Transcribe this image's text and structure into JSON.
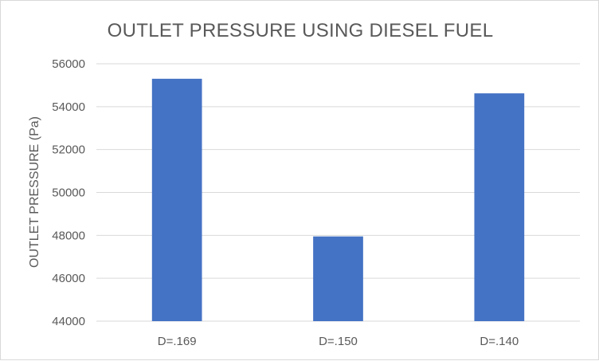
{
  "chart_data": {
    "type": "bar",
    "title": "OUTLET  PRESSURE USING DIESEL FUEL",
    "xlabel": "",
    "ylabel": "OUTLET PRESSURE (Pa)",
    "categories": [
      "D=.169",
      "D=.150",
      "D=.140"
    ],
    "series": [
      {
        "values": [
          55300,
          47950,
          54620
        ]
      }
    ],
    "ylim": [
      44000,
      56000
    ],
    "yticks": [
      44000,
      46000,
      48000,
      50000,
      52000,
      54000,
      56000
    ],
    "grid": true,
    "legend": "none",
    "bar_color": "#4472C4",
    "grid_color": "#d9d9d9"
  }
}
